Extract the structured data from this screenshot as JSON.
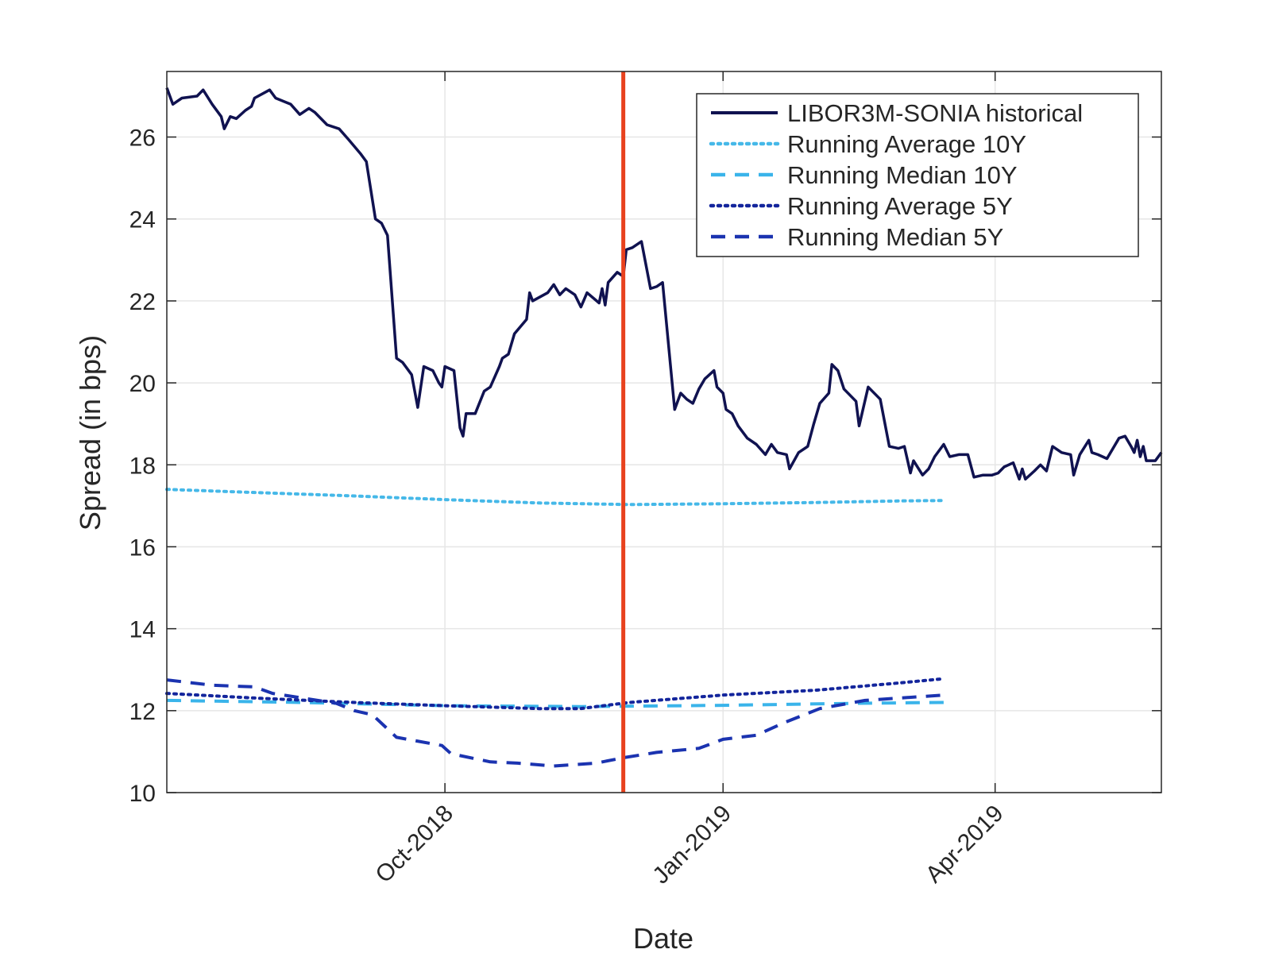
{
  "chart_data": {
    "type": "line",
    "title": "",
    "xlabel": "Date",
    "ylabel": "Spread (in bps)",
    "xlim": [
      "2018-07-01",
      "2019-05-26"
    ],
    "ylim": [
      10,
      27.6
    ],
    "grid": true,
    "legend_position": "top-right",
    "x_ticks": [
      {
        "date": "2018-10-01",
        "label": "Oct-2018"
      },
      {
        "date": "2019-01-01",
        "label": "Jan-2019"
      },
      {
        "date": "2019-04-01",
        "label": "Apr-2019"
      }
    ],
    "y_ticks": [
      10,
      12,
      14,
      16,
      18,
      20,
      22,
      24,
      26
    ],
    "vline": {
      "date": "2018-11-29",
      "color": "#e8421e"
    },
    "series": [
      {
        "name": "LIBOR3M-SONIA historical",
        "color": "#101250",
        "style": "solid",
        "points": [
          [
            "2018-07-01",
            27.2
          ],
          [
            "2018-07-03",
            26.8
          ],
          [
            "2018-07-06",
            26.95
          ],
          [
            "2018-07-11",
            27.0
          ],
          [
            "2018-07-13",
            27.15
          ],
          [
            "2018-07-16",
            26.8
          ],
          [
            "2018-07-19",
            26.5
          ],
          [
            "2018-07-20",
            26.2
          ],
          [
            "2018-07-22",
            26.5
          ],
          [
            "2018-07-24",
            26.45
          ],
          [
            "2018-07-27",
            26.65
          ],
          [
            "2018-07-29",
            26.75
          ],
          [
            "2018-07-30",
            26.95
          ],
          [
            "2018-08-04",
            27.15
          ],
          [
            "2018-08-06",
            26.95
          ],
          [
            "2018-08-11",
            26.8
          ],
          [
            "2018-08-14",
            26.55
          ],
          [
            "2018-08-17",
            26.7
          ],
          [
            "2018-08-19",
            26.6
          ],
          [
            "2018-08-23",
            26.3
          ],
          [
            "2018-08-27",
            26.2
          ],
          [
            "2018-08-30",
            25.95
          ],
          [
            "2018-09-03",
            25.6
          ],
          [
            "2018-09-05",
            25.4
          ],
          [
            "2018-09-08",
            24.0
          ],
          [
            "2018-09-10",
            23.9
          ],
          [
            "2018-09-12",
            23.6
          ],
          [
            "2018-09-15",
            20.6
          ],
          [
            "2018-09-17",
            20.5
          ],
          [
            "2018-09-20",
            20.2
          ],
          [
            "2018-09-22",
            19.4
          ],
          [
            "2018-09-24",
            20.4
          ],
          [
            "2018-09-27",
            20.3
          ],
          [
            "2018-09-29",
            20.0
          ],
          [
            "2018-09-30",
            19.9
          ],
          [
            "2018-10-01",
            20.4
          ],
          [
            "2018-10-04",
            20.3
          ],
          [
            "2018-10-06",
            18.9
          ],
          [
            "2018-10-07",
            18.7
          ],
          [
            "2018-10-08",
            19.25
          ],
          [
            "2018-10-11",
            19.25
          ],
          [
            "2018-10-14",
            19.8
          ],
          [
            "2018-10-16",
            19.9
          ],
          [
            "2018-10-19",
            20.4
          ],
          [
            "2018-10-20",
            20.6
          ],
          [
            "2018-10-22",
            20.7
          ],
          [
            "2018-10-24",
            21.2
          ],
          [
            "2018-10-28",
            21.55
          ],
          [
            "2018-10-29",
            22.2
          ],
          [
            "2018-10-30",
            22.0
          ],
          [
            "2018-11-04",
            22.2
          ],
          [
            "2018-11-06",
            22.4
          ],
          [
            "2018-11-08",
            22.15
          ],
          [
            "2018-11-10",
            22.3
          ],
          [
            "2018-11-13",
            22.15
          ],
          [
            "2018-11-15",
            21.85
          ],
          [
            "2018-11-17",
            22.2
          ],
          [
            "2018-11-21",
            21.95
          ],
          [
            "2018-11-22",
            22.3
          ],
          [
            "2018-11-23",
            21.9
          ],
          [
            "2018-11-24",
            22.45
          ],
          [
            "2018-11-27",
            22.7
          ],
          [
            "2018-11-29",
            22.6
          ],
          [
            "2018-11-30",
            23.25
          ],
          [
            "2018-12-02",
            23.3
          ],
          [
            "2018-12-05",
            23.45
          ],
          [
            "2018-12-08",
            22.3
          ],
          [
            "2018-12-10",
            22.35
          ],
          [
            "2018-12-12",
            22.45
          ],
          [
            "2018-12-16",
            19.35
          ],
          [
            "2018-12-18",
            19.75
          ],
          [
            "2018-12-20",
            19.6
          ],
          [
            "2018-12-22",
            19.5
          ],
          [
            "2018-12-24",
            19.85
          ],
          [
            "2018-12-26",
            20.1
          ],
          [
            "2018-12-29",
            20.3
          ],
          [
            "2018-12-30",
            19.9
          ],
          [
            "2019-01-01",
            19.75
          ],
          [
            "2019-01-02",
            19.35
          ],
          [
            "2019-01-04",
            19.25
          ],
          [
            "2019-01-06",
            18.95
          ],
          [
            "2019-01-09",
            18.65
          ],
          [
            "2019-01-12",
            18.5
          ],
          [
            "2019-01-15",
            18.25
          ],
          [
            "2019-01-17",
            18.5
          ],
          [
            "2019-01-19",
            18.3
          ],
          [
            "2019-01-22",
            18.25
          ],
          [
            "2019-01-23",
            17.9
          ],
          [
            "2019-01-26",
            18.3
          ],
          [
            "2019-01-29",
            18.45
          ],
          [
            "2019-01-31",
            19.0
          ],
          [
            "2019-02-02",
            19.5
          ],
          [
            "2019-02-05",
            19.75
          ],
          [
            "2019-02-06",
            20.45
          ],
          [
            "2019-02-08",
            20.3
          ],
          [
            "2019-02-10",
            19.85
          ],
          [
            "2019-02-14",
            19.55
          ],
          [
            "2019-02-15",
            18.95
          ],
          [
            "2019-02-18",
            19.9
          ],
          [
            "2019-02-22",
            19.6
          ],
          [
            "2019-02-25",
            18.45
          ],
          [
            "2019-02-28",
            18.4
          ],
          [
            "2019-03-02",
            18.45
          ],
          [
            "2019-03-04",
            17.8
          ],
          [
            "2019-03-05",
            18.1
          ],
          [
            "2019-03-08",
            17.75
          ],
          [
            "2019-03-10",
            17.9
          ],
          [
            "2019-03-12",
            18.2
          ],
          [
            "2019-03-15",
            18.5
          ],
          [
            "2019-03-17",
            18.2
          ],
          [
            "2019-03-20",
            18.25
          ],
          [
            "2019-03-23",
            18.25
          ],
          [
            "2019-03-25",
            17.7
          ],
          [
            "2019-03-28",
            17.75
          ],
          [
            "2019-03-31",
            17.75
          ],
          [
            "2019-04-02",
            17.8
          ],
          [
            "2019-04-04",
            17.95
          ],
          [
            "2019-04-07",
            18.05
          ],
          [
            "2019-04-09",
            17.65
          ],
          [
            "2019-04-10",
            17.9
          ],
          [
            "2019-04-11",
            17.65
          ],
          [
            "2019-04-14",
            17.85
          ],
          [
            "2019-04-16",
            18.0
          ],
          [
            "2019-04-18",
            17.85
          ],
          [
            "2019-04-20",
            18.45
          ],
          [
            "2019-04-23",
            18.3
          ],
          [
            "2019-04-26",
            18.25
          ],
          [
            "2019-04-27",
            17.75
          ],
          [
            "2019-04-29",
            18.25
          ],
          [
            "2019-05-02",
            18.6
          ],
          [
            "2019-05-03",
            18.3
          ],
          [
            "2019-05-05",
            18.25
          ],
          [
            "2019-05-08",
            18.15
          ],
          [
            "2019-05-12",
            18.65
          ],
          [
            "2019-05-14",
            18.7
          ],
          [
            "2019-05-16",
            18.45
          ],
          [
            "2019-05-17",
            18.3
          ],
          [
            "2019-05-18",
            18.6
          ],
          [
            "2019-05-19",
            18.2
          ],
          [
            "2019-05-20",
            18.45
          ],
          [
            "2019-05-21",
            18.1
          ],
          [
            "2019-05-24",
            18.1
          ],
          [
            "2019-05-26",
            18.3
          ]
        ]
      },
      {
        "name": "Running Average 10Y",
        "color": "#45b8e8",
        "style": "dotted",
        "points": [
          [
            "2018-07-01",
            17.4
          ],
          [
            "2018-08-01",
            17.32
          ],
          [
            "2018-09-01",
            17.24
          ],
          [
            "2018-10-01",
            17.15
          ],
          [
            "2018-11-01",
            17.07
          ],
          [
            "2018-12-01",
            17.03
          ],
          [
            "2019-01-01",
            17.05
          ],
          [
            "2019-02-01",
            17.08
          ],
          [
            "2019-03-01",
            17.12
          ],
          [
            "2019-03-15",
            17.13
          ]
        ]
      },
      {
        "name": "Running Median 10Y",
        "color": "#3ab4ea",
        "style": "dashed",
        "points": [
          [
            "2018-07-01",
            12.25
          ],
          [
            "2018-08-15",
            12.2
          ],
          [
            "2018-10-01",
            12.12
          ],
          [
            "2018-11-15",
            12.1
          ],
          [
            "2019-01-01",
            12.13
          ],
          [
            "2019-02-15",
            12.18
          ],
          [
            "2019-03-15",
            12.2
          ]
        ]
      },
      {
        "name": "Running Average 5Y",
        "color": "#13259c",
        "style": "dotted",
        "points": [
          [
            "2018-07-01",
            12.42
          ],
          [
            "2018-08-01",
            12.3
          ],
          [
            "2018-09-01",
            12.2
          ],
          [
            "2018-10-01",
            12.12
          ],
          [
            "2018-11-01",
            12.05
          ],
          [
            "2018-11-15",
            12.05
          ],
          [
            "2018-12-01",
            12.2
          ],
          [
            "2019-01-01",
            12.38
          ],
          [
            "2019-02-01",
            12.5
          ],
          [
            "2019-03-01",
            12.68
          ],
          [
            "2019-03-15",
            12.78
          ]
        ]
      },
      {
        "name": "Running Median 5Y",
        "color": "#1b33b0",
        "style": "dashed",
        "points": [
          [
            "2018-07-01",
            12.75
          ],
          [
            "2018-07-16",
            12.62
          ],
          [
            "2018-07-30",
            12.58
          ],
          [
            "2018-08-05",
            12.42
          ],
          [
            "2018-08-26",
            12.18
          ],
          [
            "2018-09-01",
            12.0
          ],
          [
            "2018-09-07",
            11.9
          ],
          [
            "2018-09-15",
            11.35
          ],
          [
            "2018-09-30",
            11.15
          ],
          [
            "2018-10-03",
            10.95
          ],
          [
            "2018-10-16",
            10.75
          ],
          [
            "2018-10-25",
            10.72
          ],
          [
            "2018-11-06",
            10.65
          ],
          [
            "2018-11-20",
            10.72
          ],
          [
            "2018-11-29",
            10.85
          ],
          [
            "2018-12-10",
            10.98
          ],
          [
            "2018-12-24",
            11.08
          ],
          [
            "2019-01-01",
            11.3
          ],
          [
            "2019-01-12",
            11.4
          ],
          [
            "2019-01-21",
            11.7
          ],
          [
            "2019-02-02",
            12.05
          ],
          [
            "2019-02-17",
            12.25
          ],
          [
            "2019-03-15",
            12.38
          ]
        ]
      }
    ]
  }
}
